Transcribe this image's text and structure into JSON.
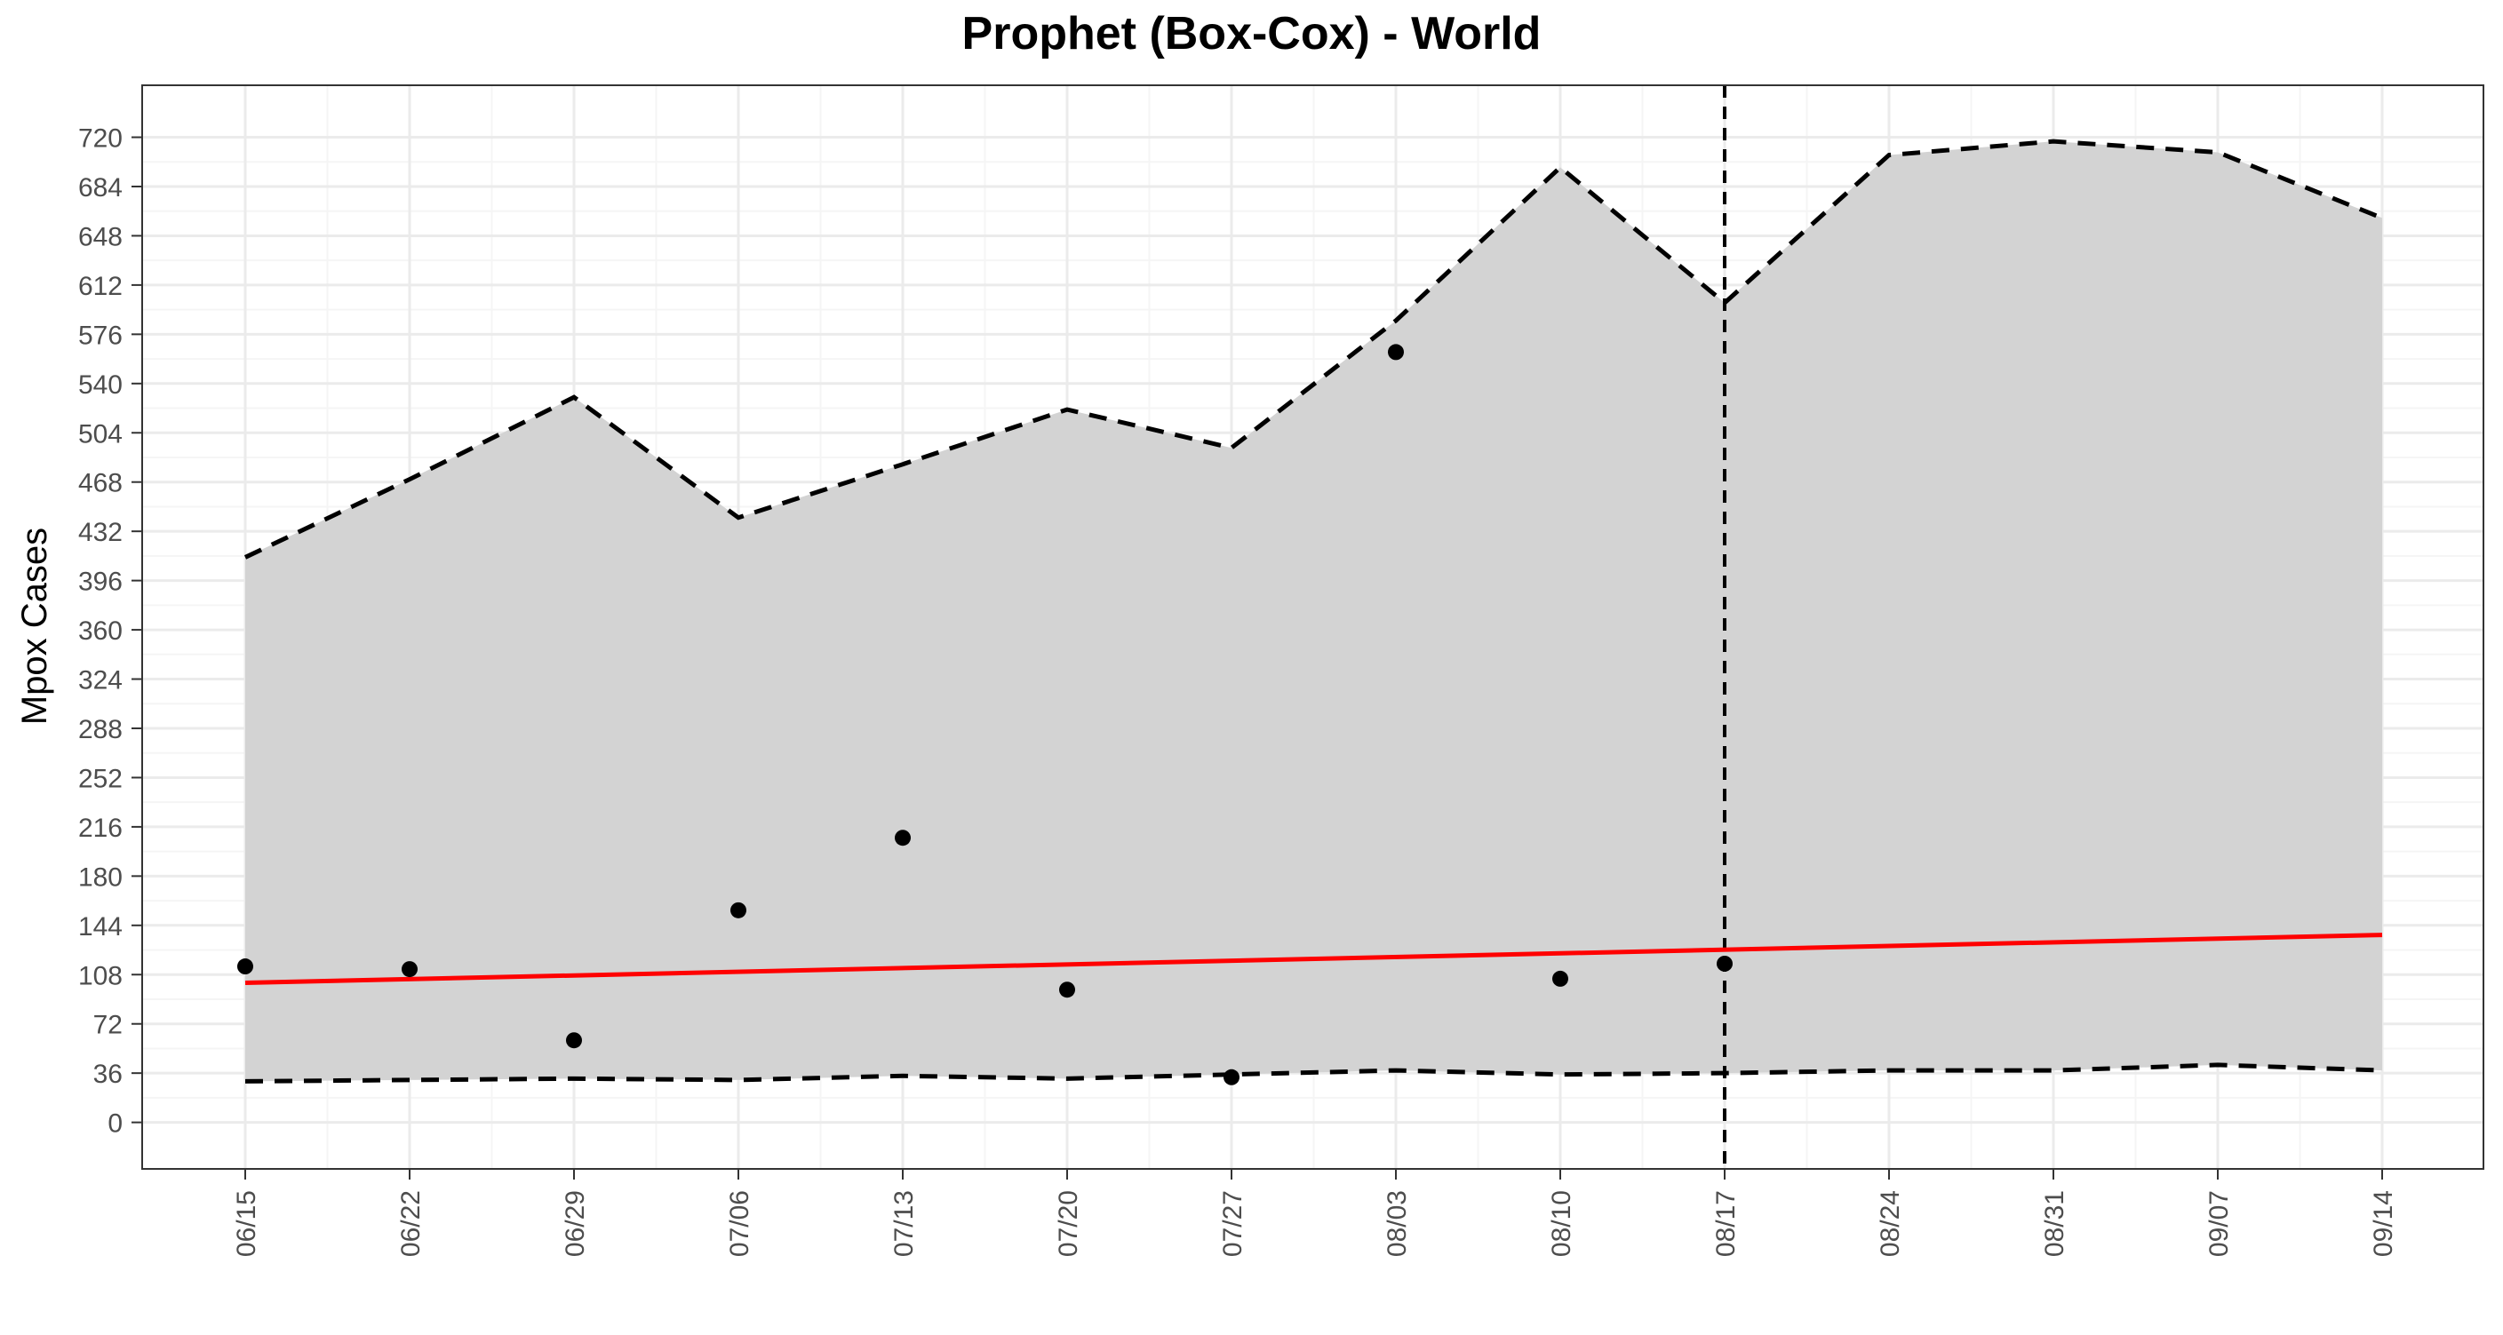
{
  "chart_data": {
    "type": "line",
    "title": "Prophet (Box-Cox) - World",
    "xlabel": "",
    "ylabel": "Mpox Cases",
    "x_ticks": [
      "06/15",
      "06/22",
      "06/29",
      "07/06",
      "07/13",
      "07/20",
      "07/27",
      "08/03",
      "08/10",
      "08/17",
      "08/24",
      "08/31",
      "09/07",
      "09/14"
    ],
    "y_ticks": [
      0,
      36,
      72,
      108,
      144,
      180,
      216,
      252,
      288,
      324,
      360,
      396,
      432,
      468,
      504,
      540,
      576,
      612,
      648,
      684,
      720
    ],
    "ylim": [
      -34,
      758
    ],
    "grid": true,
    "forecast_start": "08/17",
    "observed": {
      "x": [
        "06/15",
        "06/22",
        "06/29",
        "07/06",
        "07/13",
        "07/20",
        "07/27",
        "08/03",
        "08/10",
        "08/17"
      ],
      "y": [
        114,
        112,
        60,
        155,
        208,
        97,
        33,
        563,
        105,
        116
      ]
    },
    "fitted": {
      "x": [
        "06/15",
        "09/14"
      ],
      "y": [
        102,
        137
      ]
    },
    "interval_upper": {
      "x": [
        "06/15",
        "06/22",
        "06/29",
        "07/06",
        "07/13",
        "07/20",
        "07/27",
        "08/03",
        "08/10",
        "08/17",
        "08/24",
        "08/31",
        "09/07",
        "09/14"
      ],
      "y": [
        413,
        470,
        530,
        442,
        481,
        521,
        493,
        586,
        698,
        599,
        707,
        717,
        709,
        661
      ]
    },
    "interval_lower": {
      "x": [
        "06/15",
        "06/22",
        "06/29",
        "07/06",
        "07/13",
        "07/20",
        "07/27",
        "08/03",
        "08/10",
        "08/17",
        "08/24",
        "08/31",
        "09/07",
        "09/14"
      ],
      "y": [
        30,
        31,
        32,
        31,
        34,
        32,
        35,
        38,
        35,
        36,
        38,
        38,
        42,
        38
      ]
    },
    "colors": {
      "fitted": "#ff0000",
      "interval_fill": "#d3d3d3",
      "interval_line": "#000000",
      "points": "#000000",
      "panel_border": "#333333",
      "grid_major": "#ebebeb",
      "grid_minor": "#f5f5f5"
    }
  }
}
